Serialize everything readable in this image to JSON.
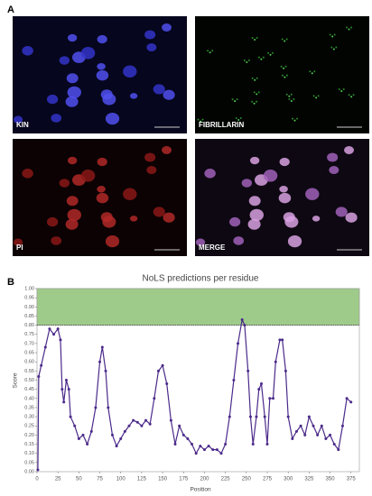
{
  "figure": {
    "panels": [
      "A",
      "B"
    ],
    "images": [
      {
        "label": "KIN"
      },
      {
        "label": "FIBRILLARIN"
      },
      {
        "label": "PI"
      },
      {
        "label": "MERGE"
      }
    ]
  },
  "chart_data": {
    "type": "line",
    "title": "NoLS predictions per residue",
    "xlabel": "Position",
    "ylabel": "Score",
    "xlim": [
      0,
      385
    ],
    "ylim": [
      0,
      1
    ],
    "xticks": [
      0,
      25,
      50,
      75,
      100,
      125,
      150,
      175,
      200,
      225,
      250,
      275,
      300,
      325,
      350,
      375
    ],
    "yticks": [
      {
        "value": 0,
        "label": "0.00"
      },
      {
        "value": 0.05,
        "label": "0.05"
      },
      {
        "value": 0.1,
        "label": "0.10"
      },
      {
        "value": 0.15,
        "label": "0.15"
      },
      {
        "value": 0.2,
        "label": "0.20"
      },
      {
        "value": 0.25,
        "label": "0.25"
      },
      {
        "value": 0.3,
        "label": "0.30"
      },
      {
        "value": 0.35,
        "label": "0.35"
      },
      {
        "value": 0.4,
        "label": "0.40"
      },
      {
        "value": 0.45,
        "label": "0.45"
      },
      {
        "value": 0.5,
        "label": "0.50"
      },
      {
        "value": 0.55,
        "label": "0.55"
      },
      {
        "value": 0.6,
        "label": "0.60"
      },
      {
        "value": 0.65,
        "label": "0.65"
      },
      {
        "value": 0.7,
        "label": "0.70"
      },
      {
        "value": 0.75,
        "label": "0.75"
      },
      {
        "value": 0.8,
        "label": "0.80"
      },
      {
        "value": 0.85,
        "label": "0.85"
      },
      {
        "value": 0.9,
        "label": "0.90"
      },
      {
        "value": 0.95,
        "label": "0.95"
      },
      {
        "value": 1,
        "label": "1.00"
      }
    ],
    "threshold": 0.8,
    "region_color": "#9fcb8a",
    "x": [
      1,
      2,
      5,
      10,
      15,
      20,
      25,
      28,
      30,
      32,
      35,
      38,
      40,
      45,
      50,
      55,
      60,
      65,
      70,
      75,
      78,
      82,
      85,
      90,
      95,
      100,
      105,
      110,
      115,
      120,
      125,
      130,
      135,
      140,
      145,
      150,
      155,
      160,
      165,
      170,
      175,
      180,
      185,
      190,
      195,
      200,
      205,
      210,
      215,
      220,
      225,
      230,
      235,
      240,
      245,
      248,
      252,
      255,
      258,
      262,
      265,
      268,
      272,
      275,
      278,
      282,
      285,
      290,
      293,
      297,
      300,
      305,
      310,
      315,
      320,
      325,
      330,
      335,
      340,
      345,
      350,
      355,
      360,
      365,
      370,
      375
    ],
    "series": [
      {
        "name": "Score",
        "color": "#4b2a8a",
        "values": [
          0.01,
          0.52,
          0.58,
          0.68,
          0.78,
          0.75,
          0.78,
          0.72,
          0.45,
          0.38,
          0.5,
          0.45,
          0.3,
          0.25,
          0.18,
          0.2,
          0.15,
          0.22,
          0.35,
          0.6,
          0.68,
          0.55,
          0.35,
          0.2,
          0.14,
          0.18,
          0.22,
          0.25,
          0.28,
          0.27,
          0.25,
          0.28,
          0.26,
          0.4,
          0.55,
          0.58,
          0.48,
          0.28,
          0.15,
          0.25,
          0.2,
          0.18,
          0.15,
          0.1,
          0.14,
          0.12,
          0.14,
          0.12,
          0.12,
          0.1,
          0.15,
          0.3,
          0.5,
          0.7,
          0.83,
          0.8,
          0.55,
          0.3,
          0.15,
          0.3,
          0.45,
          0.48,
          0.3,
          0.15,
          0.4,
          0.4,
          0.6,
          0.72,
          0.72,
          0.55,
          0.3,
          0.18,
          0.22,
          0.25,
          0.2,
          0.3,
          0.25,
          0.2,
          0.25,
          0.18,
          0.2,
          0.15,
          0.12,
          0.25,
          0.4,
          0.38
        ]
      }
    ]
  }
}
